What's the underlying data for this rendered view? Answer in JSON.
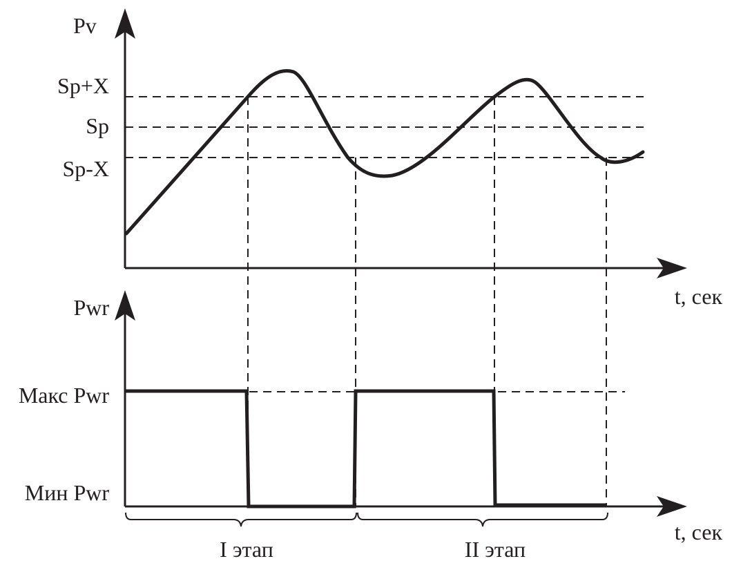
{
  "top_plot": {
    "y_axis_label": "Pv",
    "x_axis_label": "t, сек",
    "levels": [
      "Sp+X",
      "Sp",
      "Sp-X"
    ]
  },
  "bottom_plot": {
    "y_axis_label": "Pwr",
    "x_axis_label": "t, сек",
    "levels": [
      "Макс Pwr",
      "Мин Pwr"
    ]
  },
  "stages": [
    "I этап",
    "II этап"
  ],
  "colors": {
    "ink": "#231f20",
    "background": "#ffffff"
  }
}
